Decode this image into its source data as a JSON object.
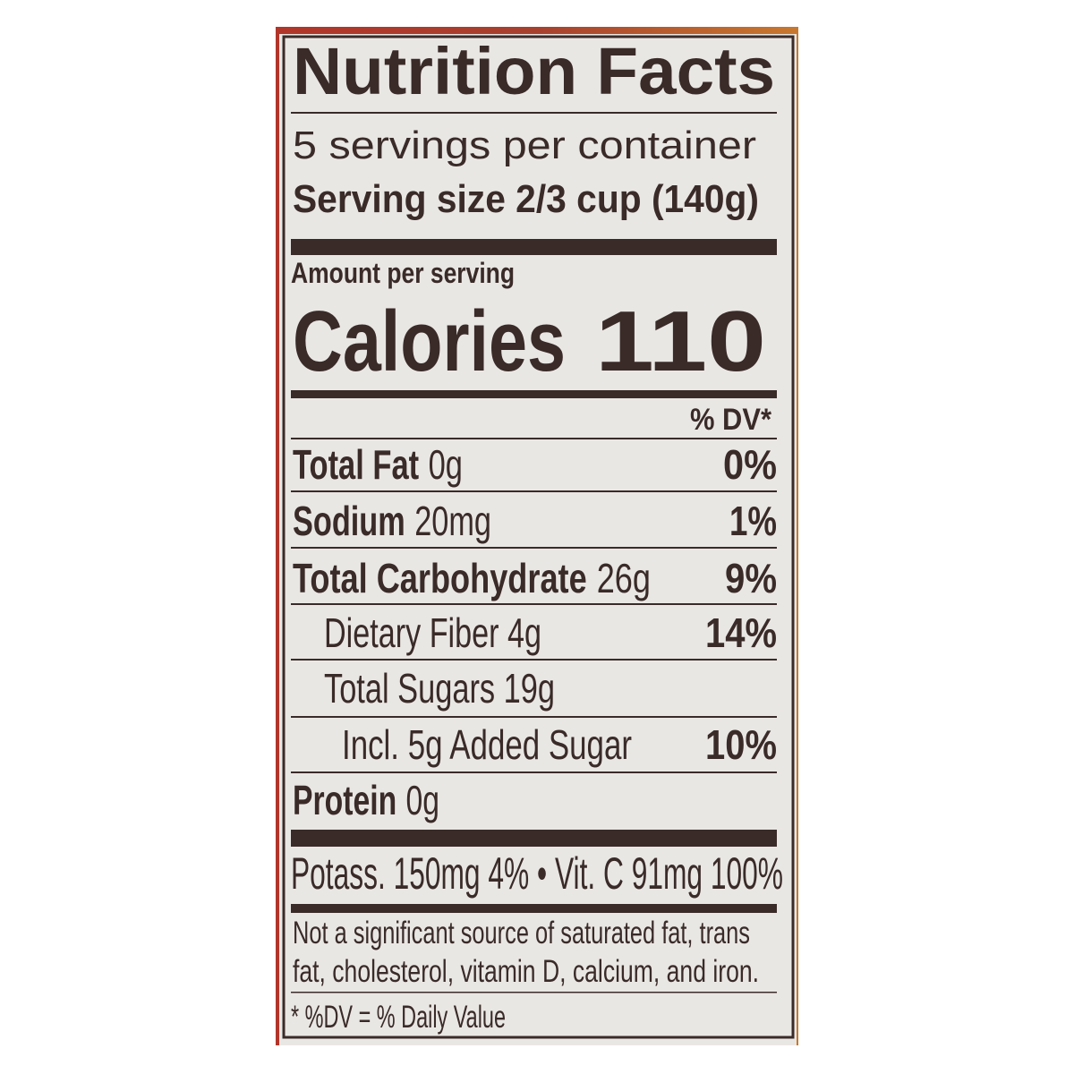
{
  "label": {
    "title": "Nutrition Facts",
    "servings_per_container": "5 servings per container",
    "serving_size": "Serving size  2/3 cup (140g)",
    "amount_per_serving": "Amount per serving",
    "calories_label": "Calories",
    "calories_value": "110",
    "dv_header": "% DV*",
    "rows": [
      {
        "name": "Total Fat",
        "amount": "0g",
        "dv": "0%"
      },
      {
        "name": "Sodium",
        "amount": "20mg",
        "dv": "1%"
      },
      {
        "name": "Total Carbohydrate",
        "amount": "26g",
        "dv": "9%"
      },
      {
        "name": "Dietary Fiber 4g",
        "dv": "14%"
      },
      {
        "name": "Total Sugars 19g"
      },
      {
        "name": "Incl. 5g Added Sugar",
        "dv": "10%"
      },
      {
        "name": "Protein",
        "amount": "0g"
      }
    ],
    "vitamins_line": "Potass. 150mg 4% • Vit. C 91mg 100%",
    "footnote_lines": [
      "Not a significant source of saturated fat, trans",
      "fat, cholesterol, vitamin D, calcium, and iron."
    ],
    "dv_note": "* %DV = % Daily Value"
  },
  "colors": {
    "ink": "#3a2b28",
    "panel": "#e9e7e4",
    "package_edge_left": "#b2352a",
    "package_edge_right": "#c8782e"
  }
}
